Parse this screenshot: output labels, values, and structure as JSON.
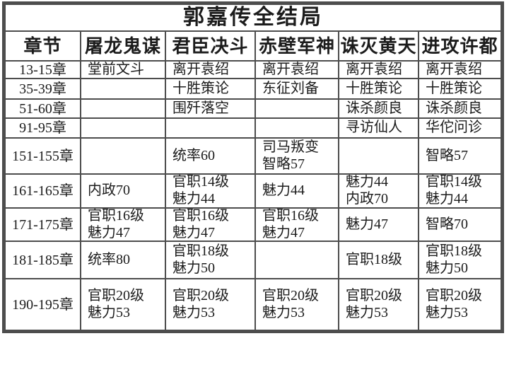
{
  "title": "郭嘉传全结局",
  "columns": [
    "章节",
    "屠龙鬼谋",
    "君臣决斗",
    "赤壁军神",
    "诛灭黄天",
    "进攻许都"
  ],
  "rows": [
    {
      "chapter": "13-15章",
      "cells": [
        "堂前文斗",
        "离开袁绍",
        "离开袁绍",
        "离开袁绍",
        "离开袁绍"
      ]
    },
    {
      "chapter": "35-39章",
      "cells": [
        "",
        "十胜策论",
        "东征刘备",
        "十胜策论",
        "十胜策论"
      ]
    },
    {
      "chapter": "51-60章",
      "cells": [
        "",
        "围歼落空",
        "",
        "诛杀颜良",
        "诛杀颜良"
      ]
    },
    {
      "chapter": "91-95章",
      "cells": [
        "",
        "",
        "",
        "寻访仙人",
        "华佗问诊"
      ]
    },
    {
      "chapter": "151-155章",
      "cells": [
        "",
        "统率60",
        "司马叛变\n智略57",
        "",
        "智略57"
      ]
    },
    {
      "chapter": "161-165章",
      "cells": [
        "内政70",
        "官职14级\n魅力44",
        "魅力44",
        "魅力44\n内政70",
        "官职14级\n魅力44"
      ]
    },
    {
      "chapter": "171-175章",
      "cells": [
        "官职16级\n魅力47",
        "官职16级\n魅力47",
        "官职16级\n魅力47",
        "魅力47",
        "智略70"
      ]
    },
    {
      "chapter": "181-185章",
      "cells": [
        "统率80",
        "官职18级\n魅力50",
        "",
        "官职18级",
        "官职18级\n魅力50"
      ]
    },
    {
      "chapter": "190-195章",
      "cells": [
        "官职20级\n魅力53",
        "官职20级\n魅力53",
        "官职20级\n魅力53",
        "官职20级\n魅力53",
        "官职20级\n魅力53"
      ]
    }
  ],
  "colors": {
    "border": "#4d4d4d",
    "text": "#1c1c1c",
    "background": "#ffffff"
  }
}
